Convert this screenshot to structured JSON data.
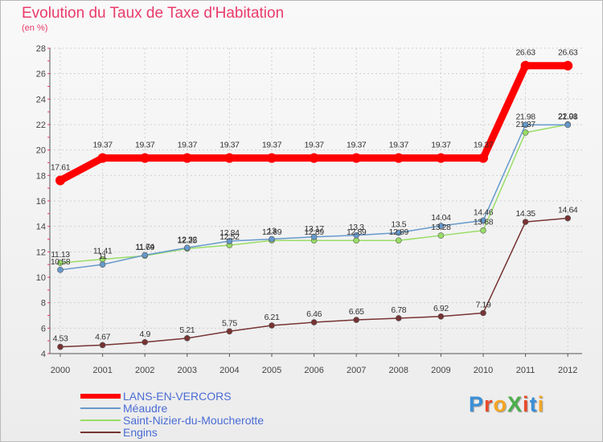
{
  "title": "Evolution du Taux de Taxe d'Habitation",
  "subtitle": "(en %)",
  "logo": {
    "text": "ProXiti",
    "colors": [
      "#3a8fd8",
      "#e84a2a",
      "#f5a623",
      "#4cae4c",
      "#e84a2a",
      "#3a8fd8",
      "#f5a623"
    ]
  },
  "chart_data": {
    "type": "line",
    "title": "Evolution du Taux de Taxe d'Habitation",
    "ylabel": "(en %)",
    "xlabel": "",
    "x": [
      "2000",
      "2001",
      "2002",
      "2003",
      "2004",
      "2005",
      "2006",
      "2007",
      "2008",
      "2009",
      "2010",
      "2011",
      "2012"
    ],
    "ylim": [
      4,
      28
    ],
    "yticks": [
      4,
      6,
      8,
      10,
      12,
      14,
      16,
      18,
      20,
      22,
      24,
      26,
      28
    ],
    "grid": true,
    "legend": "bottom-left",
    "series": [
      {
        "name": "LANS-EN-VERCORS",
        "color": "#ff0000",
        "values": [
          17.61,
          19.37,
          19.37,
          19.37,
          19.37,
          19.37,
          19.37,
          19.37,
          19.37,
          19.37,
          19.37,
          26.63,
          26.63
        ],
        "labels": [
          "17.61",
          "19.37",
          "19.37",
          "19.37",
          "19.37",
          "19.37",
          "19.37",
          "19.37",
          "19.37",
          "19.37",
          "19.37",
          "26.63",
          "26.63"
        ]
      },
      {
        "name": "Méaudre",
        "color": "#6699cc",
        "values": [
          10.58,
          11,
          11.74,
          12.32,
          12.84,
          13,
          13.17,
          13.3,
          13.5,
          14.04,
          14.46,
          21.98,
          21.98
        ],
        "labels": [
          "10.58",
          "11",
          "11.74",
          "12.32",
          "12.84",
          "13",
          "13.17",
          "13.3",
          "13.5",
          "14.04",
          "14.46",
          "21.98",
          "21.98"
        ]
      },
      {
        "name": "Saint-Nizier-du-Moucherotte",
        "color": "#99dd66",
        "values": [
          11.13,
          11.41,
          11.69,
          12.25,
          12.52,
          12.89,
          12.89,
          12.89,
          12.89,
          13.28,
          13.68,
          21.37,
          22.01
        ],
        "labels": [
          "11.13",
          "11.41",
          "11.69",
          "12.25",
          "12.52",
          "12.89",
          "12.89",
          "12.89",
          "12.89",
          "13.28",
          "13.68",
          "21.37",
          "22.01"
        ]
      },
      {
        "name": "Engins",
        "color": "#773333",
        "values": [
          4.53,
          4.67,
          4.9,
          5.21,
          5.75,
          6.21,
          6.46,
          6.65,
          6.78,
          6.92,
          7.19,
          14.35,
          14.64
        ],
        "labels": [
          "4.53",
          "4.67",
          "4.9",
          "5.21",
          "5.75",
          "6.21",
          "6.46",
          "6.65",
          "6.78",
          "6.92",
          "7.19",
          "14.35",
          "14.64"
        ]
      }
    ]
  }
}
